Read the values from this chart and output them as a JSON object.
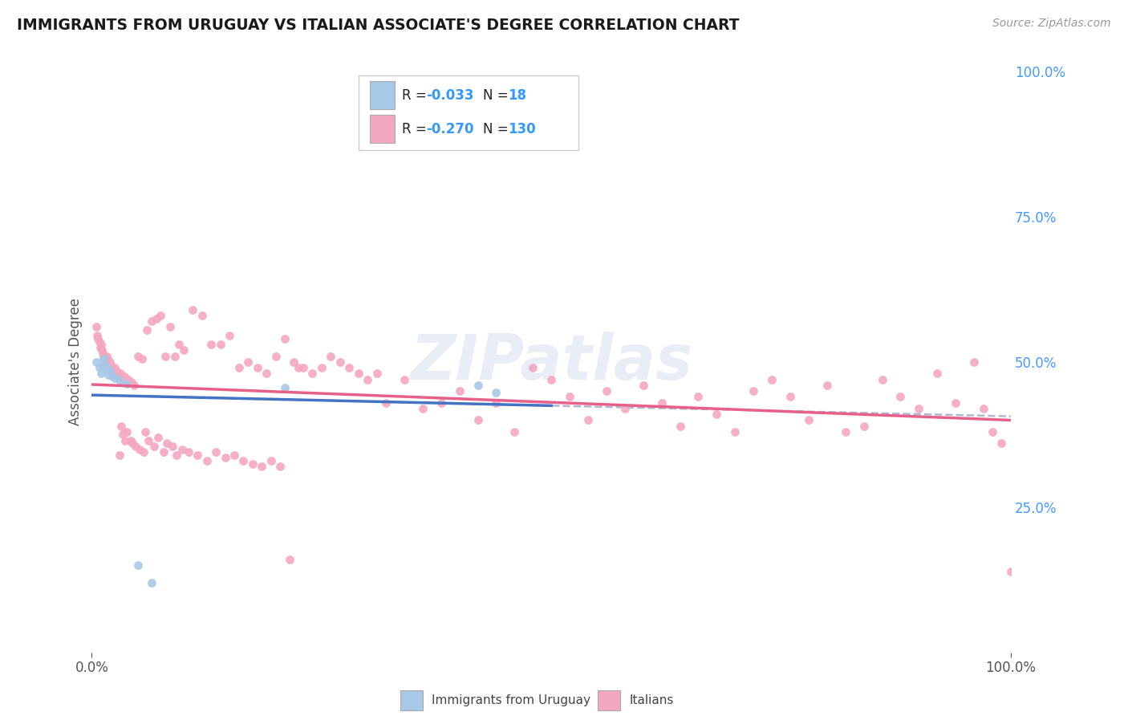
{
  "title": "IMMIGRANTS FROM URUGUAY VS ITALIAN ASSOCIATE'S DEGREE CORRELATION CHART",
  "source_text": "Source: ZipAtlas.com",
  "ylabel": "Associate's Degree",
  "watermark": "ZIPatlas",
  "bg_color": "#ffffff",
  "grid_color": "#d0d8e8",
  "blue_color": "#a8c8e8",
  "pink_color": "#f4a8c0",
  "blue_line_color": "#4472c4",
  "pink_line_color": "#e8608a",
  "dashed_color": "#b0b8d0",
  "blue_scatter_x": [
    0.005,
    0.008,
    0.01,
    0.012,
    0.013,
    0.015,
    0.016,
    0.018,
    0.02,
    0.022,
    0.025,
    0.03,
    0.038,
    0.21,
    0.42,
    0.44,
    0.05,
    0.065
  ],
  "blue_scatter_y": [
    0.5,
    0.49,
    0.48,
    0.495,
    0.505,
    0.488,
    0.492,
    0.478,
    0.485,
    0.475,
    0.472,
    0.468,
    0.462,
    0.455,
    0.46,
    0.448,
    0.15,
    0.12
  ],
  "pink_scatter_x": [
    0.005,
    0.006,
    0.007,
    0.008,
    0.009,
    0.01,
    0.011,
    0.012,
    0.013,
    0.014,
    0.015,
    0.016,
    0.017,
    0.018,
    0.019,
    0.02,
    0.021,
    0.022,
    0.023,
    0.025,
    0.027,
    0.029,
    0.031,
    0.033,
    0.035,
    0.037,
    0.04,
    0.043,
    0.046,
    0.05,
    0.055,
    0.06,
    0.065,
    0.07,
    0.075,
    0.08,
    0.085,
    0.09,
    0.095,
    0.1,
    0.11,
    0.12,
    0.13,
    0.14,
    0.15,
    0.16,
    0.17,
    0.18,
    0.19,
    0.2,
    0.21,
    0.22,
    0.23,
    0.24,
    0.25,
    0.26,
    0.27,
    0.28,
    0.29,
    0.3,
    0.31,
    0.32,
    0.34,
    0.36,
    0.38,
    0.4,
    0.42,
    0.44,
    0.46,
    0.48,
    0.5,
    0.52,
    0.54,
    0.56,
    0.58,
    0.6,
    0.62,
    0.64,
    0.66,
    0.68,
    0.7,
    0.72,
    0.74,
    0.76,
    0.78,
    0.8,
    0.82,
    0.84,
    0.86,
    0.88,
    0.9,
    0.92,
    0.94,
    0.96,
    0.97,
    0.98,
    0.99,
    1.0,
    0.03,
    0.032,
    0.034,
    0.036,
    0.038,
    0.042,
    0.044,
    0.048,
    0.052,
    0.056,
    0.058,
    0.062,
    0.068,
    0.072,
    0.078,
    0.082,
    0.088,
    0.092,
    0.098,
    0.105,
    0.115,
    0.125,
    0.135,
    0.145,
    0.155,
    0.165,
    0.175,
    0.185,
    0.195,
    0.205,
    0.215,
    0.225
  ],
  "pink_scatter_y": [
    0.56,
    0.545,
    0.54,
    0.535,
    0.525,
    0.53,
    0.52,
    0.515,
    0.51,
    0.505,
    0.5,
    0.51,
    0.505,
    0.495,
    0.49,
    0.5,
    0.495,
    0.485,
    0.48,
    0.49,
    0.485,
    0.475,
    0.48,
    0.47,
    0.475,
    0.465,
    0.47,
    0.465,
    0.46,
    0.51,
    0.505,
    0.555,
    0.57,
    0.575,
    0.58,
    0.51,
    0.56,
    0.51,
    0.53,
    0.52,
    0.59,
    0.58,
    0.53,
    0.53,
    0.545,
    0.49,
    0.5,
    0.49,
    0.48,
    0.51,
    0.54,
    0.5,
    0.49,
    0.48,
    0.49,
    0.51,
    0.5,
    0.49,
    0.48,
    0.47,
    0.48,
    0.43,
    0.47,
    0.42,
    0.43,
    0.45,
    0.4,
    0.43,
    0.38,
    0.49,
    0.47,
    0.44,
    0.4,
    0.45,
    0.42,
    0.46,
    0.43,
    0.39,
    0.44,
    0.41,
    0.38,
    0.45,
    0.47,
    0.44,
    0.4,
    0.46,
    0.38,
    0.39,
    0.47,
    0.44,
    0.42,
    0.48,
    0.43,
    0.5,
    0.42,
    0.38,
    0.36,
    0.14,
    0.34,
    0.39,
    0.375,
    0.365,
    0.38,
    0.365,
    0.36,
    0.355,
    0.35,
    0.345,
    0.38,
    0.365,
    0.355,
    0.37,
    0.345,
    0.36,
    0.355,
    0.34,
    0.35,
    0.345,
    0.34,
    0.33,
    0.345,
    0.335,
    0.34,
    0.33,
    0.325,
    0.32,
    0.33,
    0.32,
    0.16,
    0.49
  ]
}
